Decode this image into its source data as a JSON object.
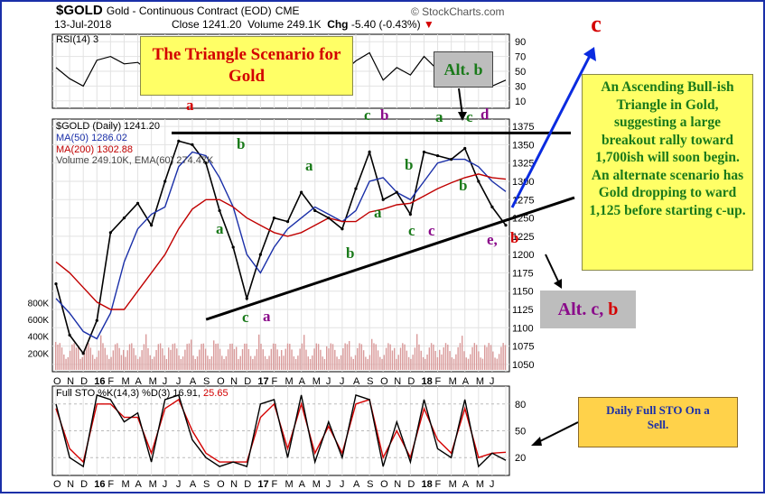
{
  "header": {
    "symbol": "$GOLD",
    "name": "Gold - Continuous Contract (EOD)",
    "exchange": "CME",
    "date": "13-Jul-2018",
    "close_label": "Close",
    "close": "1241.20",
    "volume_label": "Volume",
    "volume": "249.1K",
    "chg_label": "Chg",
    "chg": "-5.40 (-0.43%)",
    "watermark": "© StockCharts.com"
  },
  "rsi_panel": {
    "label": "RSI(14)",
    "value_partial": "3",
    "ticks": [
      "90",
      "70",
      "50",
      "30",
      "10"
    ]
  },
  "price_panel": {
    "label": "$GOLD (Daily) 1241.20",
    "ma50_label": "MA(50) 1286.02",
    "ma200_label": "MA(200) 1302.88",
    "volume_label": "Volume 249.10K, EMA(60) 274.47K",
    "ticks": [
      "1375",
      "1350",
      "1325",
      "1300",
      "1275",
      "1250",
      "1225",
      "1200",
      "1175",
      "1150",
      "1125",
      "1100",
      "1075",
      "1050"
    ],
    "volume_ticks": [
      "800K",
      "600K",
      "400K",
      "200K"
    ]
  },
  "sto_panel": {
    "label_prefix": "Full STO %K(14,3) %D(3) 16.91,",
    "label_d": "25.65",
    "ticks": [
      "80",
      "50",
      "20"
    ]
  },
  "x_axis": [
    "O",
    "N",
    "D",
    "16",
    "F",
    "M",
    "A",
    "M",
    "J",
    "J",
    "A",
    "S",
    "O",
    "N",
    "D",
    "17",
    "F",
    "M",
    "A",
    "M",
    "J",
    "J",
    "A",
    "S",
    "O",
    "N",
    "D",
    "18",
    "F",
    "M",
    "A",
    "M",
    "J"
  ],
  "annotations": {
    "title_box": "The Triangle Scenario for Gold",
    "alt_b": "Alt. b",
    "alt_cb_1": "Alt. c,",
    "alt_cb_2": "b",
    "c_label": "c",
    "main_note": "An Ascending Bull-ish Triangle in Gold, suggesting a large breakout rally toward 1,700ish will soon begin. An alternate scenario has Gold dropping to ward 1,125 before starting c-up.",
    "sto_note": "Daily Full STO On a Sell."
  },
  "wave_labels": [
    {
      "text": "a",
      "color": "red"
    },
    {
      "text": "b",
      "color": "green"
    },
    {
      "text": "a",
      "color": "green"
    },
    {
      "text": "c",
      "color": "green"
    },
    {
      "text": "a",
      "color": "purple"
    },
    {
      "text": "a",
      "color": "green"
    },
    {
      "text": "b",
      "color": "green"
    },
    {
      "text": "a",
      "color": "green"
    },
    {
      "text": "c",
      "color": "green"
    },
    {
      "text": "b",
      "color": "purple"
    },
    {
      "text": "b",
      "color": "green"
    },
    {
      "text": "c",
      "color": "green"
    },
    {
      "text": "c",
      "color": "purple"
    },
    {
      "text": "a",
      "color": "green"
    },
    {
      "text": "c",
      "color": "green"
    },
    {
      "text": "d",
      "color": "purple"
    },
    {
      "text": "b",
      "color": "green"
    },
    {
      "text": "e,",
      "color": "purple"
    },
    {
      "text": "b",
      "color": "red"
    }
  ],
  "chart_data": {
    "type": "line",
    "title": "$GOLD Gold - Continuous Contract (EOD) CME",
    "x": [
      "2015-10",
      "2015-11",
      "2015-12",
      "2016-01",
      "2016-02",
      "2016-03",
      "2016-04",
      "2016-05",
      "2016-06",
      "2016-07",
      "2016-08",
      "2016-09",
      "2016-10",
      "2016-11",
      "2016-12",
      "2017-01",
      "2017-02",
      "2017-03",
      "2017-04",
      "2017-05",
      "2017-06",
      "2017-07",
      "2017-08",
      "2017-09",
      "2017-10",
      "2017-11",
      "2017-12",
      "2018-01",
      "2018-02",
      "2018-03",
      "2018-04",
      "2018-05",
      "2018-06",
      "2018-07"
    ],
    "series": [
      {
        "name": "$GOLD (Daily)",
        "values": [
          1160,
          1090,
          1065,
          1110,
          1230,
          1250,
          1270,
          1240,
          1300,
          1355,
          1350,
          1325,
          1260,
          1210,
          1140,
          1200,
          1250,
          1245,
          1285,
          1260,
          1250,
          1235,
          1290,
          1340,
          1275,
          1285,
          1255,
          1340,
          1335,
          1330,
          1345,
          1300,
          1265,
          1240
        ]
      },
      {
        "name": "MA(50)",
        "values": [
          1140,
          1120,
          1095,
          1085,
          1120,
          1190,
          1235,
          1255,
          1265,
          1320,
          1340,
          1335,
          1305,
          1265,
          1200,
          1175,
          1210,
          1235,
          1250,
          1265,
          1255,
          1245,
          1260,
          1300,
          1305,
          1285,
          1275,
          1300,
          1325,
          1330,
          1330,
          1320,
          1300,
          1286
        ]
      },
      {
        "name": "MA(200)",
        "values": [
          1190,
          1175,
          1155,
          1135,
          1125,
          1125,
          1150,
          1175,
          1200,
          1235,
          1262,
          1275,
          1275,
          1265,
          1250,
          1240,
          1230,
          1225,
          1230,
          1240,
          1250,
          1245,
          1245,
          1258,
          1262,
          1268,
          1270,
          1280,
          1290,
          1298,
          1305,
          1310,
          1305,
          1303
        ]
      }
    ],
    "ylim": [
      1040,
      1385
    ],
    "resistance_line": 1366,
    "support_line": {
      "from": [
        "2016-11",
        1115
      ],
      "to": [
        "2018-07",
        1258
      ]
    },
    "rsi": {
      "ylim": [
        0,
        100
      ],
      "values": [
        55,
        40,
        30,
        65,
        70,
        60,
        62,
        48,
        70,
        72,
        60,
        48,
        30,
        28,
        25,
        58,
        62,
        50,
        66,
        42,
        55,
        48,
        64,
        75,
        38,
        55,
        45,
        70,
        52,
        50,
        62,
        35,
        30,
        38
      ]
    },
    "sto": {
      "ylim": [
        0,
        100
      ],
      "k": [
        80,
        20,
        10,
        90,
        85,
        60,
        70,
        15,
        85,
        90,
        40,
        20,
        10,
        15,
        10,
        80,
        85,
        20,
        90,
        15,
        60,
        20,
        90,
        85,
        10,
        60,
        15,
        85,
        30,
        20,
        85,
        10,
        25,
        17
      ],
      "d": [
        75,
        30,
        15,
        80,
        80,
        65,
        65,
        25,
        75,
        85,
        50,
        25,
        15,
        15,
        15,
        65,
        80,
        30,
        80,
        25,
        55,
        25,
        80,
        85,
        20,
        50,
        20,
        75,
        40,
        25,
        75,
        20,
        25,
        26
      ]
    },
    "volume_ticks": [
      200,
      400,
      600,
      800
    ]
  }
}
